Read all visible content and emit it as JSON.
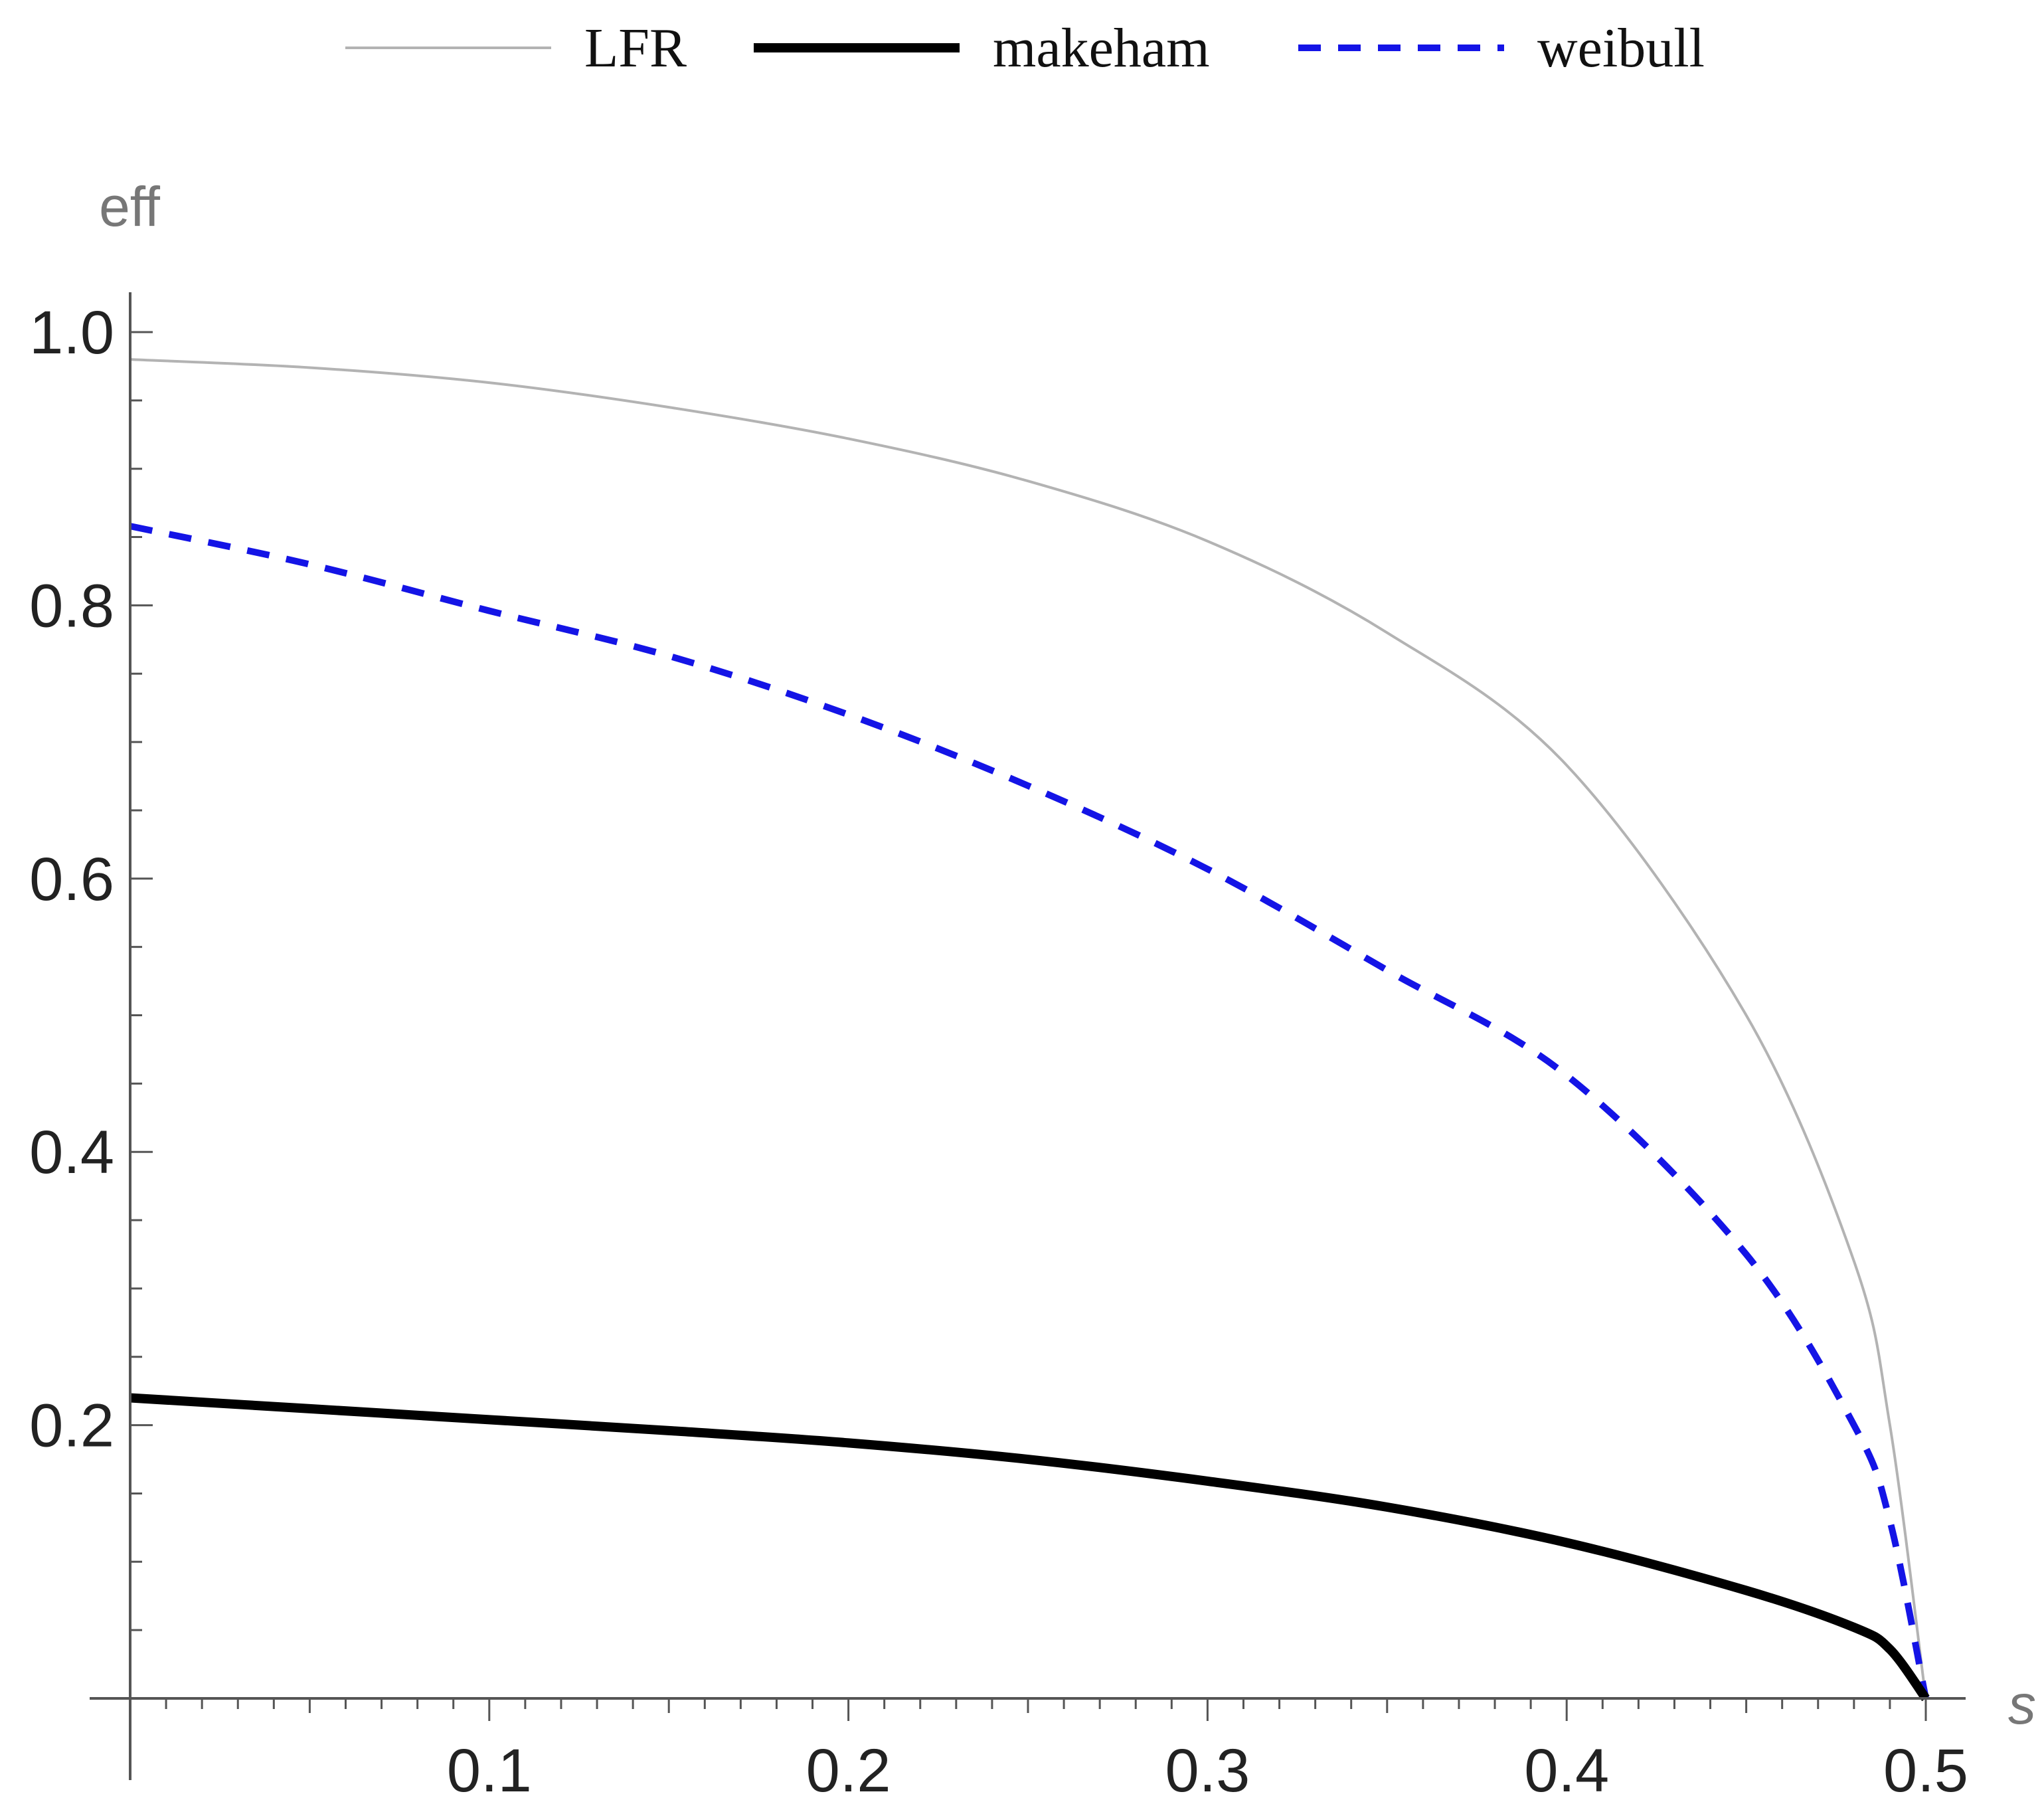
{
  "chart_data": {
    "type": "line",
    "xlabel": "s",
    "ylabel": "eff",
    "xlim": [
      0,
      0.5
    ],
    "ylim": [
      0,
      1.0
    ],
    "x_ticks": [
      0.1,
      0.2,
      0.3,
      0.4,
      0.5
    ],
    "x_tick_labels": [
      "0.1",
      "0.2",
      "0.3",
      "0.4",
      "0.5"
    ],
    "y_ticks": [
      0.2,
      0.4,
      0.6,
      0.8,
      1.0
    ],
    "y_tick_labels": [
      "0.2",
      "0.4",
      "0.6",
      "0.8",
      "1.0"
    ],
    "legend_position": "top",
    "grid": false,
    "series": [
      {
        "name": "LFR",
        "color": "#b3b3b3",
        "style": "solid-thin",
        "x": [
          0,
          0.05,
          0.1,
          0.15,
          0.2,
          0.25,
          0.3,
          0.35,
          0.4,
          0.45,
          0.48,
          0.49,
          0.5
        ],
        "y": [
          0.98,
          0.974,
          0.963,
          0.945,
          0.922,
          0.891,
          0.847,
          0.78,
          0.683,
          0.5,
          0.32,
          0.2,
          0.0
        ]
      },
      {
        "name": "makeham",
        "color": "#000000",
        "style": "solid-thick",
        "x": [
          0,
          0.05,
          0.1,
          0.15,
          0.2,
          0.25,
          0.3,
          0.35,
          0.4,
          0.45,
          0.48,
          0.49,
          0.5
        ],
        "y": [
          0.22,
          0.212,
          0.204,
          0.196,
          0.187,
          0.175,
          0.159,
          0.14,
          0.114,
          0.079,
          0.052,
          0.036,
          0.0
        ]
      },
      {
        "name": "weibull",
        "color": "#1414e6",
        "style": "dashed",
        "x": [
          0,
          0.05,
          0.1,
          0.15,
          0.2,
          0.25,
          0.3,
          0.35,
          0.4,
          0.45,
          0.48,
          0.49,
          0.5
        ],
        "y": [
          0.858,
          0.83,
          0.796,
          0.763,
          0.72,
          0.668,
          0.607,
          0.533,
          0.456,
          0.325,
          0.2,
          0.13,
          0.0
        ]
      }
    ]
  }
}
